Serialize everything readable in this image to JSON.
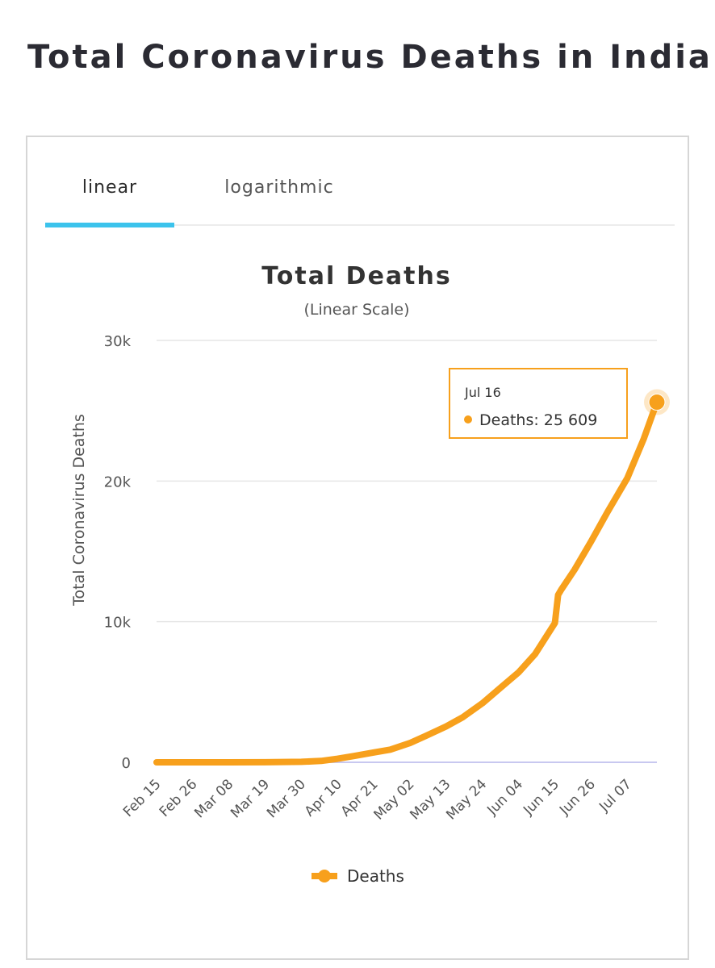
{
  "page": {
    "title": "Total Coronavirus Deaths in India"
  },
  "tabs": [
    {
      "label": "linear",
      "active": true
    },
    {
      "label": "logarithmic",
      "active": false
    }
  ],
  "colors": {
    "series": "#f7a01c",
    "tab_accent": "#3cc3ec",
    "tooltip_border": "#f7a01c"
  },
  "tooltip": {
    "date": "Jul 16",
    "label": "Deaths: 25 609"
  },
  "chart_data": {
    "type": "line",
    "title": "Total Deaths",
    "subtitle": "(Linear Scale)",
    "ylabel": "Total Coronavirus Deaths",
    "xlabel": "",
    "ylim": [
      0,
      30000
    ],
    "y_ticks": [
      {
        "value": 0,
        "label": "0"
      },
      {
        "value": 10000,
        "label": "10k"
      },
      {
        "value": 20000,
        "label": "20k"
      },
      {
        "value": 30000,
        "label": "30k"
      }
    ],
    "x_tick_labels": [
      "Feb 15",
      "Feb 26",
      "Mar 08",
      "Mar 19",
      "Mar 30",
      "Apr 10",
      "Apr 21",
      "May 02",
      "May 13",
      "May 24",
      "Jun 04",
      "Jun 15",
      "Jun 26",
      "Jul 07"
    ],
    "grid": true,
    "legend": {
      "position": "bottom-center",
      "entries": [
        "Deaths"
      ]
    },
    "series": [
      {
        "name": "Deaths",
        "x": [
          "Feb 15",
          "Feb 26",
          "Mar 08",
          "Mar 19",
          "Mar 30",
          "Apr 05",
          "Apr 10",
          "Apr 15",
          "Apr 21",
          "Apr 26",
          "May 02",
          "May 07",
          "May 13",
          "May 18",
          "May 24",
          "May 29",
          "Jun 04",
          "Jun 09",
          "Jun 15",
          "Jun 16",
          "Jun 17",
          "Jun 21",
          "Jun 26",
          "Jul 01",
          "Jul 07",
          "Jul 12",
          "Jul 16"
        ],
        "values": [
          0,
          0,
          0,
          4,
          32,
          100,
          250,
          450,
          700,
          900,
          1370,
          1900,
          2550,
          3200,
          4200,
          5200,
          6400,
          7700,
          9900,
          11900,
          12300,
          13700,
          15700,
          17800,
          20200,
          23000,
          25609
        ]
      }
    ]
  }
}
